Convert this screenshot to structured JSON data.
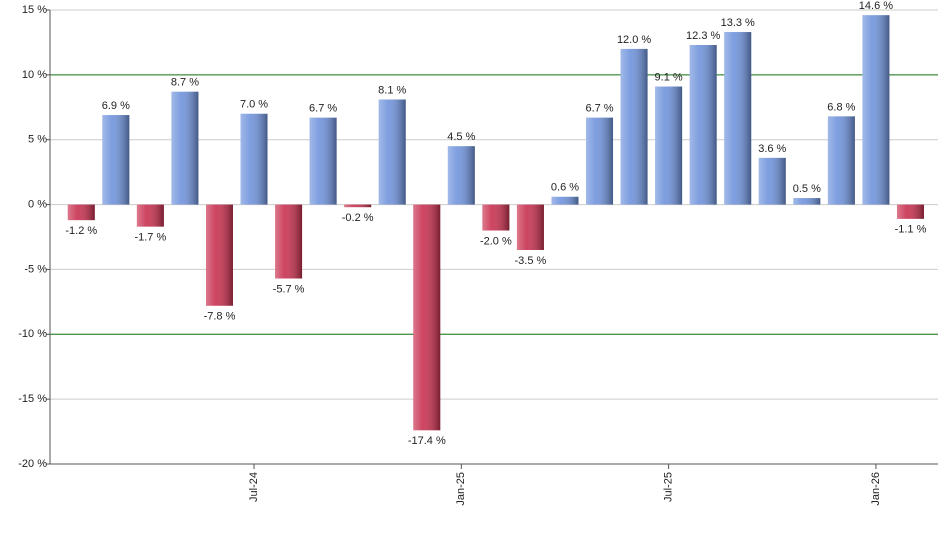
{
  "chart_data": {
    "type": "bar",
    "categories": [
      null,
      null,
      null,
      null,
      null,
      "Jul-24",
      null,
      null,
      null,
      null,
      null,
      "Jan-25",
      null,
      null,
      null,
      null,
      null,
      "Jul-25",
      null,
      null,
      null,
      null,
      null,
      "Jan-26",
      null
    ],
    "values": [
      -1.2,
      6.9,
      -1.7,
      8.7,
      -7.8,
      7.0,
      -5.7,
      6.7,
      -0.2,
      8.1,
      -17.4,
      4.5,
      -2.0,
      -3.5,
      0.6,
      6.7,
      12.0,
      9.1,
      12.3,
      13.3,
      3.6,
      0.5,
      6.8,
      14.6,
      -1.1
    ],
    "value_labels": [
      "-1.2 %",
      "6.9 %",
      "-1.7 %",
      "8.7 %",
      "-7.8 %",
      "7.0 %",
      "-5.7 %",
      "6.7 %",
      "-0.2 %",
      "8.1 %",
      "-17.4 %",
      "4.5 %",
      "-2.0 %",
      "-3.5 %",
      "0.6 %",
      "6.7 %",
      "12.0 %",
      "9.1 %",
      "12.3 %",
      "13.3 %",
      "3.6 %",
      "0.5 %",
      "6.8 %",
      "14.6 %",
      "-1.1 %"
    ],
    "positive_color": "#6f93dc",
    "negative_color": "#c8304f",
    "ylim": [
      -20,
      15
    ],
    "yticks": [
      {
        "value": -20,
        "label": "-20 %"
      },
      {
        "value": -15,
        "label": "-15 %"
      },
      {
        "value": -10,
        "label": "-10 %"
      },
      {
        "value": -5,
        "label": "-5 %"
      },
      {
        "value": 0,
        "label": "0 %"
      },
      {
        "value": 5,
        "label": "5 %"
      },
      {
        "value": 10,
        "label": "10 %"
      },
      {
        "value": 15,
        "label": "15 %"
      }
    ],
    "grid": true,
    "reference_lines": [
      10,
      -10
    ],
    "reference_color": "#1a7a1a"
  }
}
